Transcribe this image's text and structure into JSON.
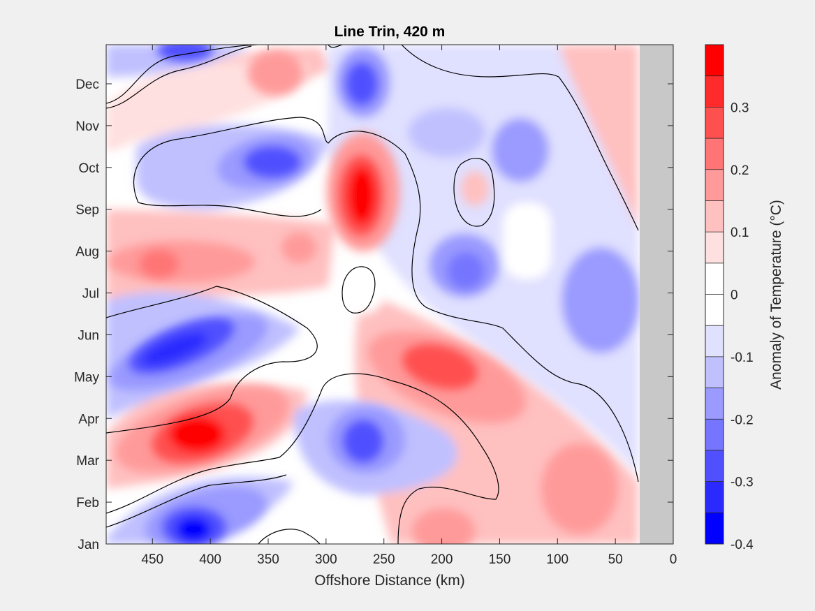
{
  "chart_data": {
    "type": "heatmap",
    "subtype": "filled-contour",
    "title": "Line Trin, 420 m",
    "xlabel": "Offshore Distance (km)",
    "ylabel": "",
    "x_reversed": true,
    "xlim": [
      0,
      490
    ],
    "x_ticks": [
      450,
      400,
      350,
      300,
      250,
      200,
      150,
      100,
      50,
      0
    ],
    "y_ticks": [
      "Jan",
      "Feb",
      "Mar",
      "Apr",
      "May",
      "Jun",
      "Jul",
      "Aug",
      "Sep",
      "Oct",
      "Nov",
      "Dec"
    ],
    "no_data_x_range": [
      0,
      29
    ],
    "no_data_color": "#c8c8c8",
    "colorbar": {
      "label": "Anomaly of Temperature (°C)",
      "range": [
        -0.4,
        0.4
      ],
      "tick_values": [
        0.3,
        0.2,
        0.1,
        0,
        -0.1,
        -0.2,
        -0.3,
        -0.4
      ],
      "tick_labels": [
        "0.3",
        "0.2",
        "0.1",
        "0",
        "-0.1",
        "-0.2",
        "-0.3",
        "-0.4"
      ],
      "colors_top_to_bottom": [
        "#ff0000",
        "#ff2a2a",
        "#ff5050",
        "#ff7575",
        "#ff9a9a",
        "#ffc0c0",
        "#ffe0e0",
        "#ffffff",
        "#ffffff",
        "#e0e0ff",
        "#c0c0ff",
        "#9a9aff",
        "#7575ff",
        "#5050ff",
        "#2a2aff",
        "#0000ff"
      ]
    },
    "features": [
      {
        "name": "warm-core-apr",
        "x_km": 410,
        "month": 3.7,
        "peak": 0.4
      },
      {
        "name": "warm-core-oct",
        "x_km": 265,
        "month": 9.4,
        "peak": 0.38
      },
      {
        "name": "warm-core-may",
        "x_km": 195,
        "month": 5.2,
        "peak": 0.28
      },
      {
        "name": "warm-band-aug",
        "x_km": 430,
        "month": 8.3,
        "peak": 0.22
      },
      {
        "name": "warm-patch-feb",
        "x_km": 75,
        "month": 2.2,
        "peak": 0.15
      },
      {
        "name": "cold-core-jun",
        "x_km": 420,
        "month": 5.8,
        "peak": -0.34
      },
      {
        "name": "cold-core-jan",
        "x_km": 410,
        "month": 1.1,
        "peak": -0.32
      },
      {
        "name": "cold-core-oct",
        "x_km": 345,
        "month": 10.2,
        "peak": -0.27
      },
      {
        "name": "cold-core-dec",
        "x_km": 268,
        "month": 12.0,
        "peak": -0.26
      },
      {
        "name": "cold-core-mar",
        "x_km": 265,
        "month": 3.5,
        "peak": -0.26
      },
      {
        "name": "cold-core-aug",
        "x_km": 180,
        "month": 7.8,
        "peak": -0.24
      },
      {
        "name": "cold-band-jul",
        "x_km": 70,
        "month": 7.4,
        "peak": -0.15
      }
    ]
  }
}
